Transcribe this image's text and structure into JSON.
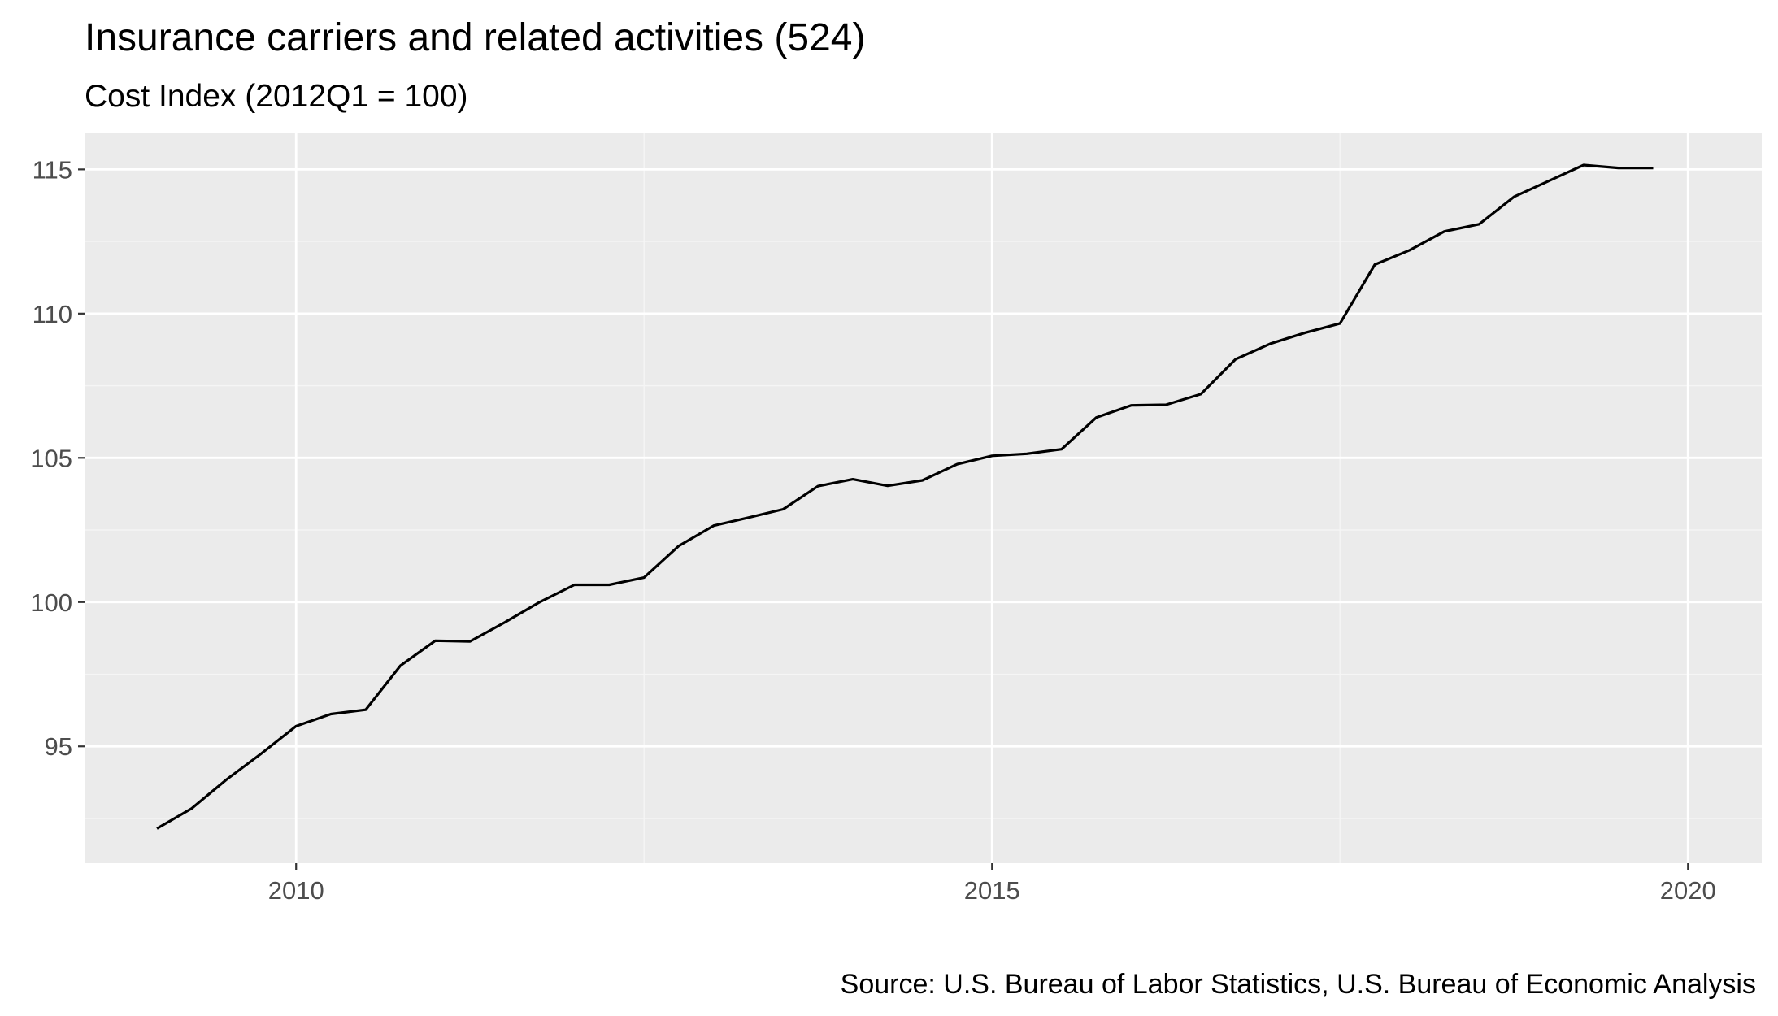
{
  "chart_data": {
    "type": "line",
    "title": "Insurance carriers and related activities (524)",
    "subtitle": "Cost Index (2012Q1 = 100)",
    "caption": "Source: U.S. Bureau of Labor Statistics, U.S. Bureau of Economic Analysis",
    "xlabel": "",
    "ylabel": "",
    "xlim": [
      2008.48,
      2020.53
    ],
    "ylim": [
      90.95,
      116.25
    ],
    "x_ticks": [
      2010,
      2015,
      2020
    ],
    "x_tick_labels": [
      "2010",
      "2015",
      "2020"
    ],
    "y_ticks": [
      95,
      100,
      105,
      110,
      115
    ],
    "y_tick_labels": [
      "95",
      "100",
      "105",
      "110",
      "115"
    ],
    "grid": true,
    "legend": "none",
    "series": [
      {
        "color": "#000000",
        "points": [
          [
            2009.0,
            92.15
          ],
          [
            2009.25,
            92.85
          ],
          [
            2009.5,
            93.85
          ],
          [
            2009.75,
            94.75
          ],
          [
            2010.0,
            95.7
          ],
          [
            2010.25,
            96.12
          ],
          [
            2010.5,
            96.27
          ],
          [
            2010.75,
            97.8
          ],
          [
            2011.0,
            98.66
          ],
          [
            2011.25,
            98.64
          ],
          [
            2011.5,
            99.3
          ],
          [
            2011.75,
            100.0
          ],
          [
            2012.0,
            100.6
          ],
          [
            2012.25,
            100.6
          ],
          [
            2012.5,
            100.85
          ],
          [
            2012.75,
            101.95
          ],
          [
            2013.0,
            102.65
          ],
          [
            2013.25,
            102.93
          ],
          [
            2013.5,
            103.22
          ],
          [
            2013.75,
            104.02
          ],
          [
            2014.0,
            104.26
          ],
          [
            2014.25,
            104.03
          ],
          [
            2014.5,
            104.22
          ],
          [
            2014.75,
            104.78
          ],
          [
            2015.0,
            105.07
          ],
          [
            2015.25,
            105.14
          ],
          [
            2015.5,
            105.3
          ],
          [
            2015.75,
            106.4
          ],
          [
            2016.0,
            106.82
          ],
          [
            2016.25,
            106.84
          ],
          [
            2016.5,
            107.21
          ],
          [
            2016.75,
            108.42
          ],
          [
            2017.0,
            108.96
          ],
          [
            2017.25,
            109.34
          ],
          [
            2017.5,
            109.66
          ],
          [
            2017.75,
            111.7
          ],
          [
            2018.0,
            112.2
          ],
          [
            2018.25,
            112.85
          ],
          [
            2018.5,
            113.1
          ],
          [
            2018.75,
            114.05
          ],
          [
            2019.0,
            114.6
          ],
          [
            2019.25,
            115.15
          ],
          [
            2019.5,
            115.05
          ],
          [
            2019.75,
            115.05
          ]
        ]
      }
    ]
  },
  "colors": {
    "panel_background": "#ebebeb",
    "grid_major": "#ffffff",
    "grid_minor": "#f5f5f5",
    "line": "#000000",
    "tick_text": "#4d4d4d",
    "tick_mark": "#333333"
  }
}
